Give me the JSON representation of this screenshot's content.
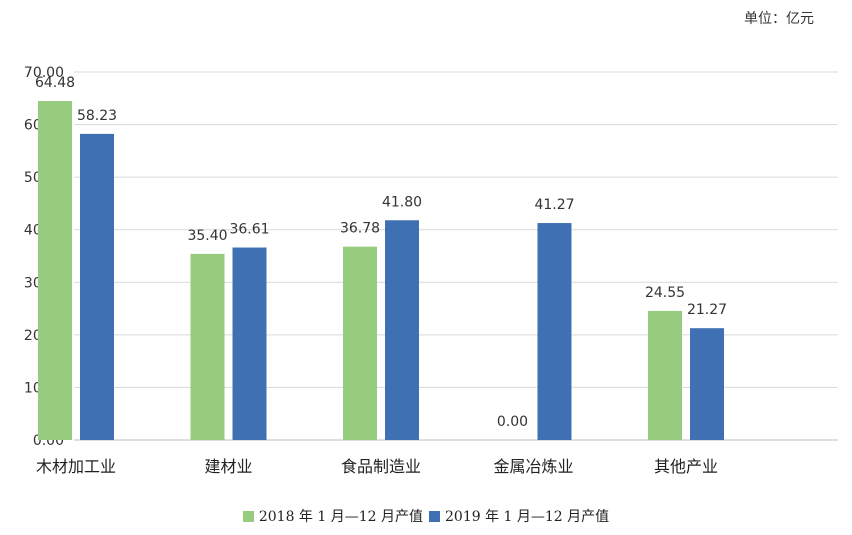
{
  "unit_label": "单位：亿元",
  "colors": {
    "series_2018": "#97cc7f",
    "series_2019": "#3e70b3",
    "grid": "#d9d9d9"
  },
  "chart_data": {
    "type": "bar",
    "categories": [
      "木材加工业",
      "建材业",
      "食品制造业",
      "金属冶炼业",
      "其他产业"
    ],
    "series": [
      {
        "name": "2018 年 1 月—12 月产值",
        "values": [
          64.48,
          35.4,
          36.78,
          0.0,
          24.55
        ]
      },
      {
        "name": "2019 年 1 月—12 月产值",
        "values": [
          58.23,
          36.61,
          41.8,
          41.27,
          21.27
        ]
      }
    ],
    "y_ticks": [
      "0.00",
      "10.00",
      "20.00",
      "30.00",
      "40.00",
      "50.00",
      "60.00",
      "70.00"
    ],
    "ylim": [
      0,
      70
    ],
    "grid": true,
    "legend_position": "bottom",
    "data_labels": true
  }
}
